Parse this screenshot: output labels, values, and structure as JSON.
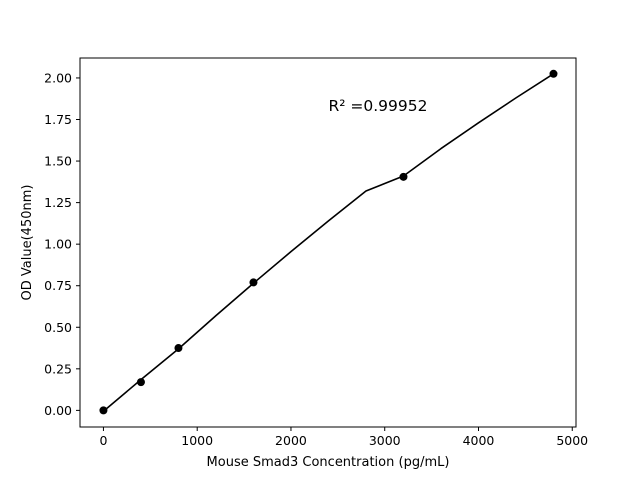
{
  "chart_data": {
    "type": "scatter",
    "title": "",
    "xlabel": "Mouse Smad3 Concentration (pg/mL)",
    "ylabel": "OD Value(450nm)",
    "xlim": [
      -250,
      5040
    ],
    "ylim": [
      -0.1,
      2.12
    ],
    "xticks": [
      0,
      1000,
      2000,
      3000,
      4000,
      5000
    ],
    "xtick_labels": [
      "0",
      "1000",
      "2000",
      "3000",
      "4000",
      "5000"
    ],
    "yticks": [
      0.0,
      0.25,
      0.5,
      0.75,
      1.0,
      1.25,
      1.5,
      1.75,
      2.0
    ],
    "ytick_labels": [
      "0.00",
      "0.25",
      "0.50",
      "0.75",
      "1.00",
      "1.25",
      "1.50",
      "1.75",
      "2.00"
    ],
    "grid": false,
    "legend": "none",
    "series": [
      {
        "type": "scatter",
        "x": [
          0,
          400,
          800,
          1600,
          3200,
          4800
        ],
        "y": [
          0.0,
          0.17,
          0.375,
          0.77,
          1.405,
          2.025
        ]
      },
      {
        "type": "fit-curve",
        "x": [
          0,
          400,
          800,
          1200,
          1600,
          2000,
          2400,
          2800,
          3200,
          3600,
          4000,
          4400,
          4800
        ],
        "y": [
          -0.005,
          0.185,
          0.37,
          0.57,
          0.765,
          0.955,
          1.14,
          1.32,
          1.41,
          1.575,
          1.73,
          1.88,
          2.025
        ]
      }
    ],
    "annotation": {
      "text": "R² =0.99952",
      "x": 2400,
      "y": 1.83
    },
    "colors": {
      "points": "#000000",
      "line": "#000000",
      "axes": "#000000"
    }
  }
}
